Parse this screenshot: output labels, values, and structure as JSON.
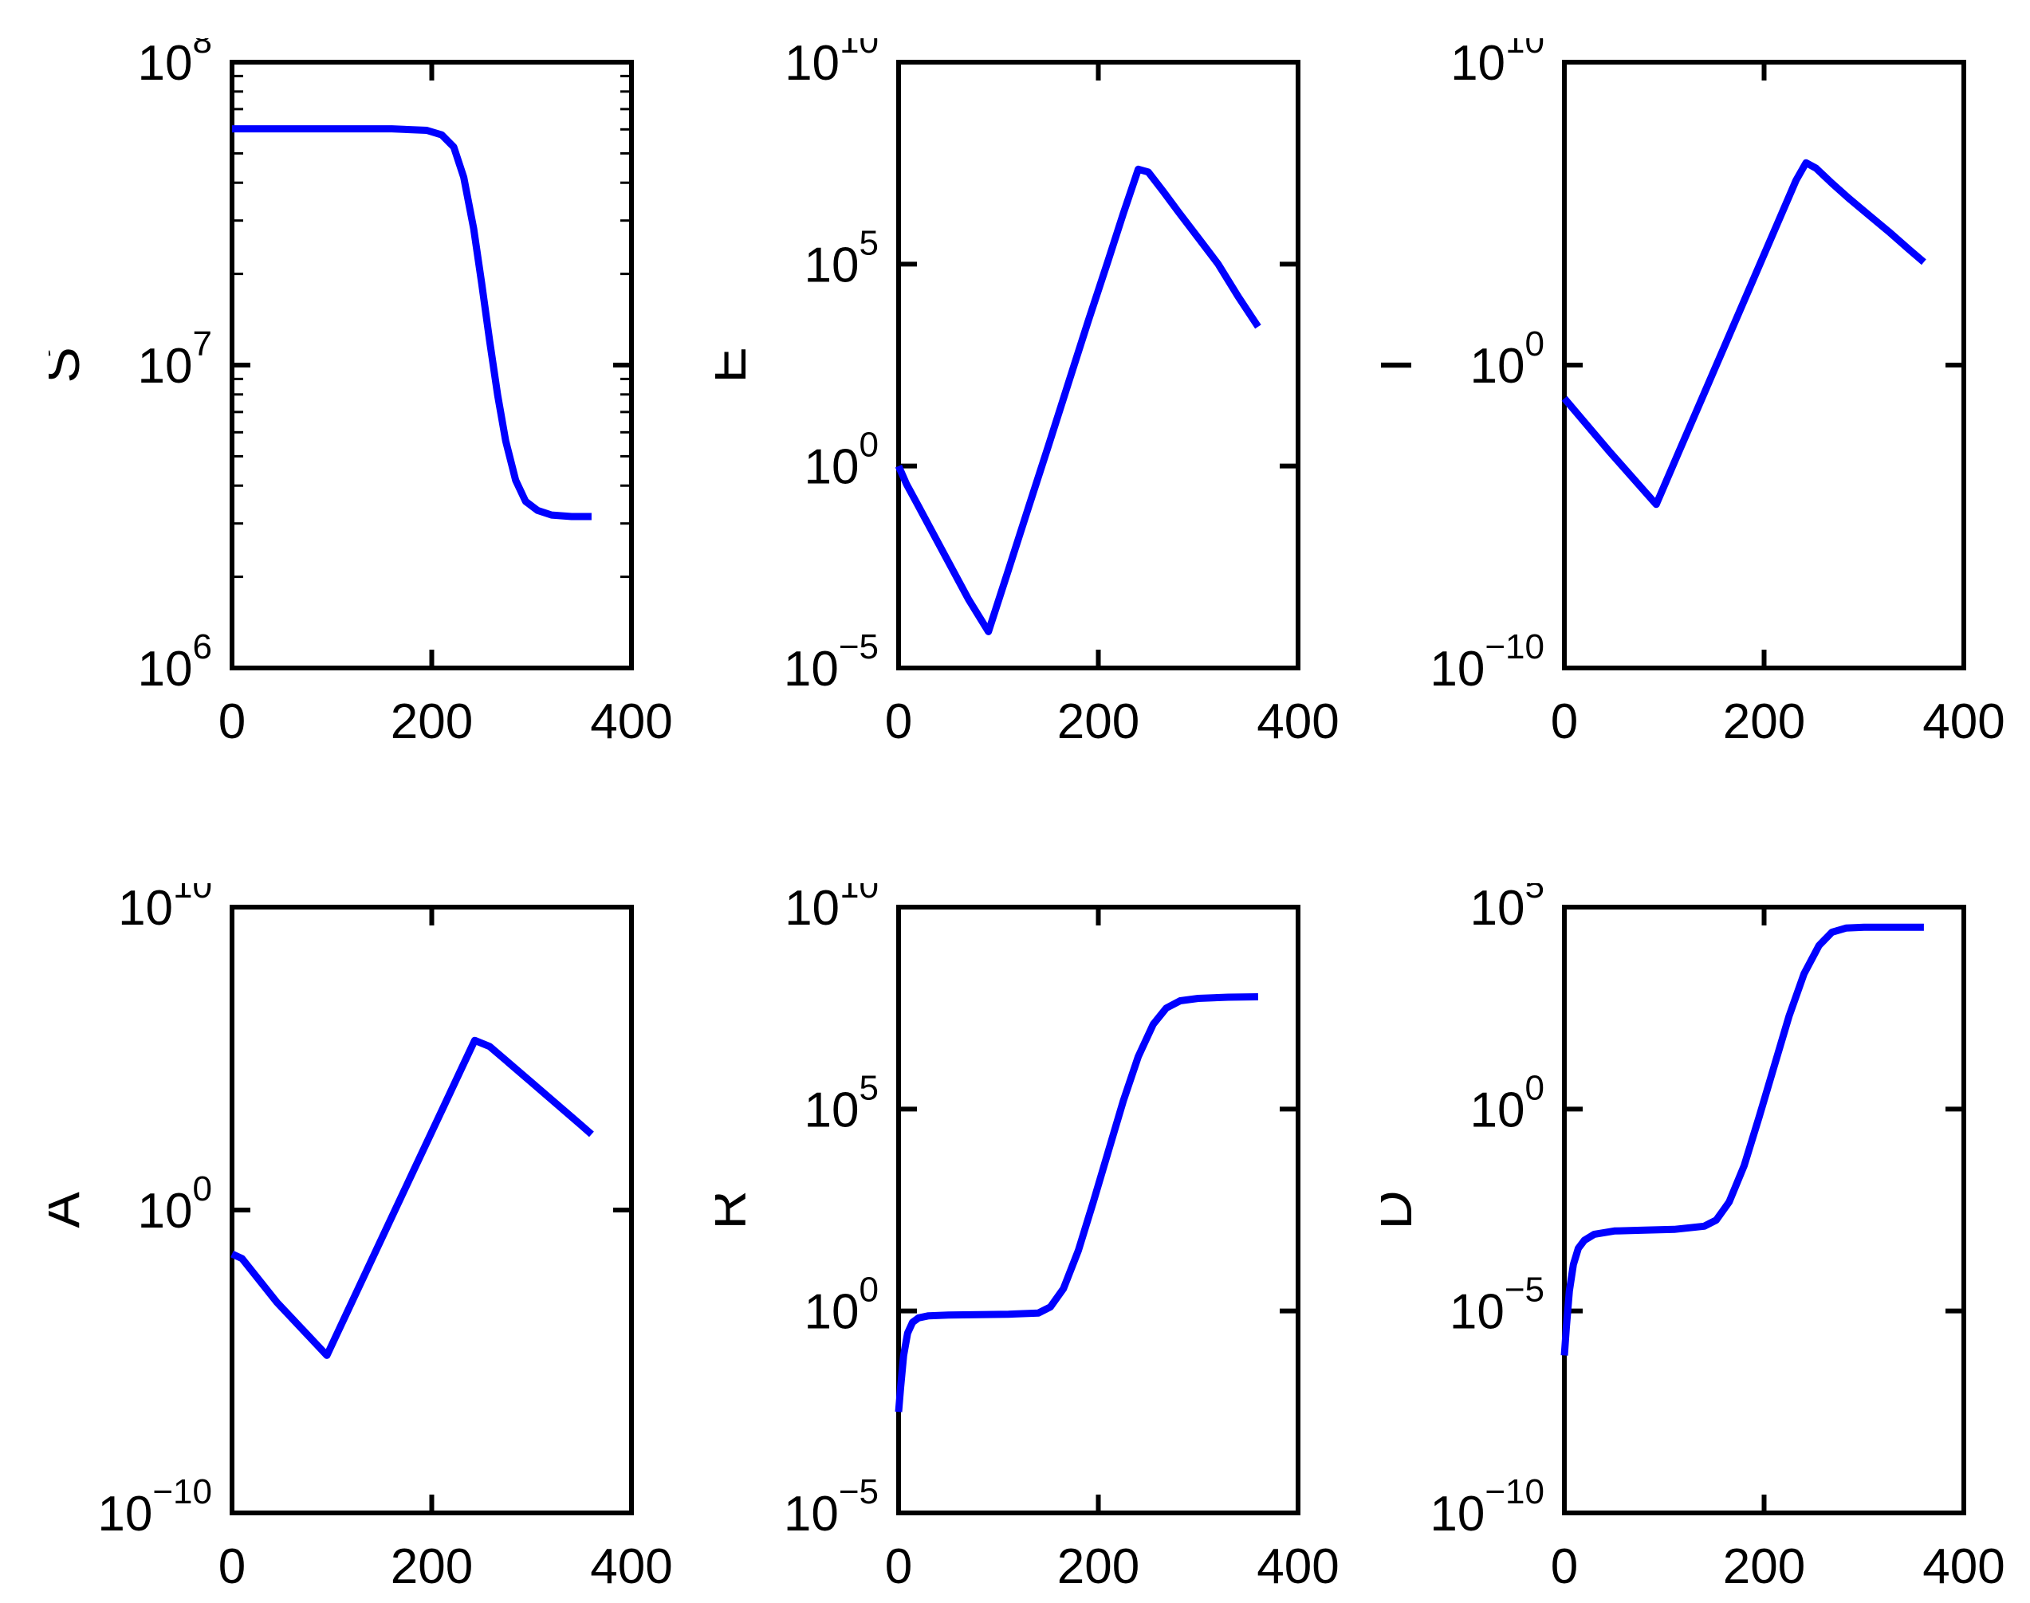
{
  "figure": {
    "background": "#ffffff",
    "axis_color": "#000000",
    "line_color": "#0000FF"
  },
  "chart_data": [
    {
      "type": "line",
      "ylabel": "S",
      "xlabel": "",
      "xlim": [
        0,
        400
      ],
      "x_ticks": [
        0,
        200,
        400
      ],
      "yscale": "log",
      "ylim_exponents": [
        6,
        8
      ],
      "y_tick_exponents": [
        8,
        7,
        6
      ],
      "minor_ticks": true,
      "grid": false,
      "legend": null,
      "series": [
        {
          "name": "S",
          "x": [
            0,
            40,
            80,
            120,
            160,
            195,
            210,
            222,
            232,
            242,
            250,
            258,
            266,
            274,
            284,
            294,
            306,
            320,
            340,
            360
          ],
          "log10y": [
            7.78,
            7.78,
            7.78,
            7.78,
            7.78,
            7.775,
            7.76,
            7.72,
            7.62,
            7.45,
            7.27,
            7.08,
            6.9,
            6.75,
            6.62,
            6.55,
            6.52,
            6.505,
            6.5,
            6.5
          ]
        }
      ]
    },
    {
      "type": "line",
      "ylabel": "E",
      "xlabel": "",
      "xlim": [
        0,
        400
      ],
      "x_ticks": [
        0,
        200,
        400
      ],
      "yscale": "log",
      "ylim_exponents": [
        -5,
        10
      ],
      "y_tick_exponents": [
        10,
        5,
        0,
        -5
      ],
      "minor_ticks": false,
      "grid": false,
      "legend": null,
      "series": [
        {
          "name": "E",
          "x": [
            0,
            8,
            20,
            45,
            70,
            90,
            110,
            130,
            150,
            170,
            190,
            210,
            225,
            240,
            250,
            265,
            280,
            300,
            320,
            340,
            360
          ],
          "log10y": [
            0.0,
            -0.45,
            -1.0,
            -2.15,
            -3.3,
            -4.1,
            -2.57,
            -1.03,
            0.5,
            2.05,
            3.6,
            5.1,
            6.25,
            7.35,
            7.28,
            6.8,
            6.3,
            5.65,
            5.0,
            4.2,
            3.45
          ]
        }
      ]
    },
    {
      "type": "line",
      "ylabel": "I",
      "xlabel": "",
      "xlim": [
        0,
        400
      ],
      "x_ticks": [
        0,
        200,
        400
      ],
      "yscale": "log",
      "ylim_exponents": [
        -10,
        10
      ],
      "y_tick_exponents": [
        10,
        0,
        -10
      ],
      "minor_ticks": false,
      "grid": false,
      "legend": null,
      "series": [
        {
          "name": "I",
          "x": [
            0,
            45,
            92,
            115,
            140,
            165,
            190,
            215,
            232,
            242,
            252,
            268,
            285,
            305,
            325,
            345,
            360
          ],
          "log10y": [
            -1.1,
            -2.85,
            -4.6,
            -2.84,
            -0.93,
            0.98,
            2.89,
            4.8,
            6.1,
            6.68,
            6.5,
            6.0,
            5.5,
            4.95,
            4.4,
            3.82,
            3.4
          ]
        }
      ]
    },
    {
      "type": "line",
      "ylabel": "A",
      "xlabel": "",
      "xlim": [
        0,
        400
      ],
      "x_ticks": [
        0,
        200,
        400
      ],
      "yscale": "log",
      "ylim_exponents": [
        -10,
        10
      ],
      "y_tick_exponents": [
        10,
        0,
        -10
      ],
      "minor_ticks": false,
      "grid": false,
      "legend": null,
      "series": [
        {
          "name": "A",
          "x": [
            0,
            10,
            45,
            95,
            120,
            150,
            180,
            210,
            230,
            243,
            258,
            275,
            300,
            325,
            350,
            360
          ],
          "log10y": [
            -1.45,
            -1.6,
            -3.05,
            -4.8,
            -3.04,
            -0.93,
            1.18,
            3.28,
            4.69,
            5.6,
            5.4,
            4.92,
            4.21,
            3.5,
            2.79,
            2.5
          ]
        }
      ]
    },
    {
      "type": "line",
      "ylabel": "R",
      "xlabel": "",
      "xlim": [
        0,
        400
      ],
      "x_ticks": [
        0,
        200,
        400
      ],
      "yscale": "log",
      "ylim_exponents": [
        -5,
        10
      ],
      "y_tick_exponents": [
        10,
        5,
        0,
        -5
      ],
      "minor_ticks": false,
      "grid": false,
      "legend": null,
      "series": [
        {
          "name": "R",
          "x": [
            0,
            2,
            5,
            9,
            14,
            20,
            30,
            50,
            80,
            110,
            140,
            152,
            165,
            180,
            195,
            210,
            225,
            240,
            255,
            268,
            282,
            300,
            330,
            360
          ],
          "log10y": [
            -2.5,
            -1.9,
            -1.1,
            -0.55,
            -0.28,
            -0.17,
            -0.12,
            -0.1,
            -0.09,
            -0.08,
            -0.05,
            0.1,
            0.55,
            1.5,
            2.7,
            3.95,
            5.2,
            6.3,
            7.1,
            7.5,
            7.68,
            7.74,
            7.77,
            7.78
          ]
        }
      ]
    },
    {
      "type": "line",
      "ylabel": "D",
      "xlabel": "",
      "xlim": [
        0,
        400
      ],
      "x_ticks": [
        0,
        200,
        400
      ],
      "yscale": "log",
      "ylim_exponents": [
        -10,
        5
      ],
      "y_tick_exponents": [
        5,
        0,
        -5,
        -10
      ],
      "minor_ticks": false,
      "grid": false,
      "legend": null,
      "series": [
        {
          "name": "D",
          "x": [
            0,
            2,
            5,
            9,
            14,
            20,
            30,
            50,
            80,
            110,
            140,
            152,
            165,
            180,
            195,
            210,
            225,
            240,
            255,
            268,
            282,
            300,
            330,
            360
          ],
          "log10y": [
            -6.1,
            -5.4,
            -4.5,
            -3.85,
            -3.45,
            -3.25,
            -3.1,
            -3.02,
            -3.0,
            -2.98,
            -2.9,
            -2.75,
            -2.3,
            -1.4,
            -0.2,
            1.05,
            2.3,
            3.35,
            4.05,
            4.38,
            4.48,
            4.5,
            4.5,
            4.5
          ]
        }
      ]
    }
  ]
}
